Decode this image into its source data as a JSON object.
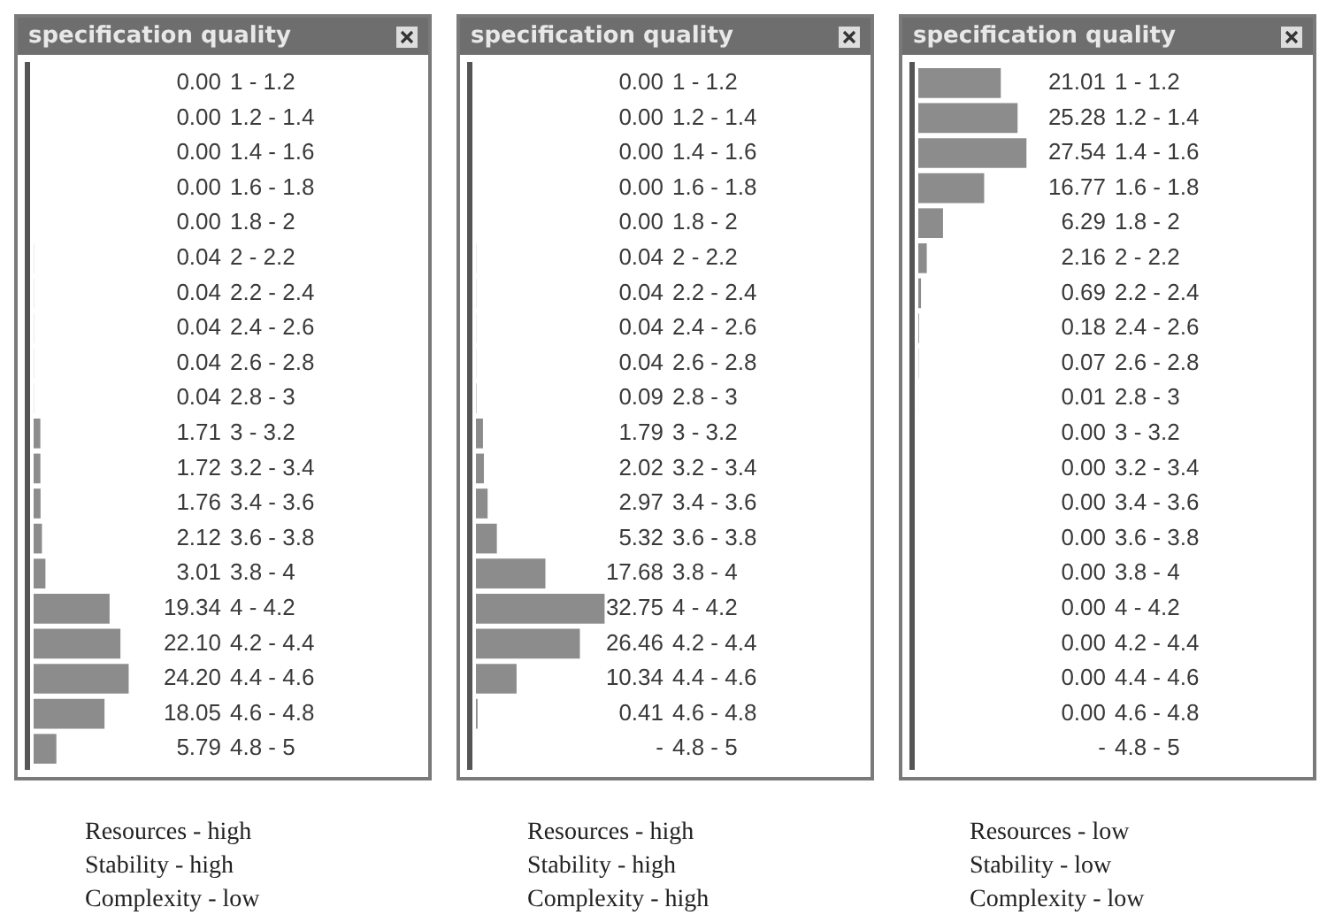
{
  "chart_data": [
    {
      "type": "bar",
      "orientation": "horizontal",
      "title": "specification quality",
      "categories": [
        "1 - 1.2",
        "1.2 - 1.4",
        "1.4 - 1.6",
        "1.6 - 1.8",
        "1.8 - 2",
        "2 - 2.2",
        "2.2 - 2.4",
        "2.4 - 2.6",
        "2.6 - 2.8",
        "2.8 - 3",
        "3 - 3.2",
        "3.2 - 3.4",
        "3.4 - 3.6",
        "3.6 - 3.8",
        "3.8 - 4",
        "4 - 4.2",
        "4.2 - 4.4",
        "4.4 - 4.6",
        "4.6 - 4.8",
        "4.8 - 5"
      ],
      "values": [
        0,
        0,
        0,
        0,
        0,
        0.04,
        0.04,
        0.04,
        0.04,
        0.04,
        1.71,
        1.72,
        1.76,
        2.12,
        3.01,
        19.34,
        22.1,
        24.2,
        18.05,
        5.79
      ],
      "value_labels": [
        "0.00",
        "0.00",
        "0.00",
        "0.00",
        "0.00",
        "0.04",
        "0.04",
        "0.04",
        "0.04",
        "0.04",
        "1.71",
        "1.72",
        "1.76",
        "2.12",
        "3.01",
        "19.34",
        "22.10",
        "24.20",
        "18.05",
        "5.79"
      ],
      "color": "#8c8c8c",
      "xlim": [
        0,
        100
      ],
      "annotations": [
        "Resources - high",
        "Stability - high",
        "Complexity - low"
      ]
    },
    {
      "type": "bar",
      "orientation": "horizontal",
      "title": "specification quality",
      "categories": [
        "1 - 1.2",
        "1.2 - 1.4",
        "1.4 - 1.6",
        "1.6 - 1.8",
        "1.8 - 2",
        "2 - 2.2",
        "2.2 - 2.4",
        "2.4 - 2.6",
        "2.6 - 2.8",
        "2.8 - 3",
        "3 - 3.2",
        "3.2 - 3.4",
        "3.4 - 3.6",
        "3.6 - 3.8",
        "3.8 - 4",
        "4 - 4.2",
        "4.2 - 4.4",
        "4.4 - 4.6",
        "4.6 - 4.8",
        "4.8 - 5"
      ],
      "values": [
        0,
        0,
        0,
        0,
        0,
        0.04,
        0.04,
        0.04,
        0.04,
        0.09,
        1.79,
        2.02,
        2.97,
        5.32,
        17.68,
        32.75,
        26.46,
        10.34,
        0.41,
        null
      ],
      "value_labels": [
        "0.00",
        "0.00",
        "0.00",
        "0.00",
        "0.00",
        "0.04",
        "0.04",
        "0.04",
        "0.04",
        "0.09",
        "1.79",
        "2.02",
        "2.97",
        "5.32",
        "17.68",
        "32.75",
        "26.46",
        "10.34",
        "0.41",
        "-"
      ],
      "color": "#8c8c8c",
      "xlim": [
        0,
        100
      ],
      "annotations": [
        "Resources - high",
        "Stability - high",
        "Complexity - high"
      ]
    },
    {
      "type": "bar",
      "orientation": "horizontal",
      "title": "specification quality",
      "categories": [
        "1 - 1.2",
        "1.2 - 1.4",
        "1.4 - 1.6",
        "1.6 - 1.8",
        "1.8 - 2",
        "2 - 2.2",
        "2.2 - 2.4",
        "2.4 - 2.6",
        "2.6 - 2.8",
        "2.8 - 3",
        "3 - 3.2",
        "3.2 - 3.4",
        "3.4 - 3.6",
        "3.6 - 3.8",
        "3.8 - 4",
        "4 - 4.2",
        "4.2 - 4.4",
        "4.4 - 4.6",
        "4.6 - 4.8",
        "4.8 - 5"
      ],
      "values": [
        21.01,
        25.28,
        27.54,
        16.77,
        6.29,
        2.16,
        0.69,
        0.18,
        0.07,
        0.01,
        0,
        0,
        0,
        0,
        0,
        0,
        0,
        0,
        0,
        null
      ],
      "value_labels": [
        "21.01",
        "25.28",
        "27.54",
        "16.77",
        "6.29",
        "2.16",
        "0.69",
        "0.18",
        "0.07",
        "0.01",
        "0.00",
        "0.00",
        "0.00",
        "0.00",
        "0.00",
        "0.00",
        "0.00",
        "0.00",
        "0.00",
        "-"
      ],
      "color": "#8c8c8c",
      "xlim": [
        0,
        100
      ],
      "annotations": [
        "Resources - low",
        "Stability - low",
        "Complexity - low"
      ]
    }
  ]
}
